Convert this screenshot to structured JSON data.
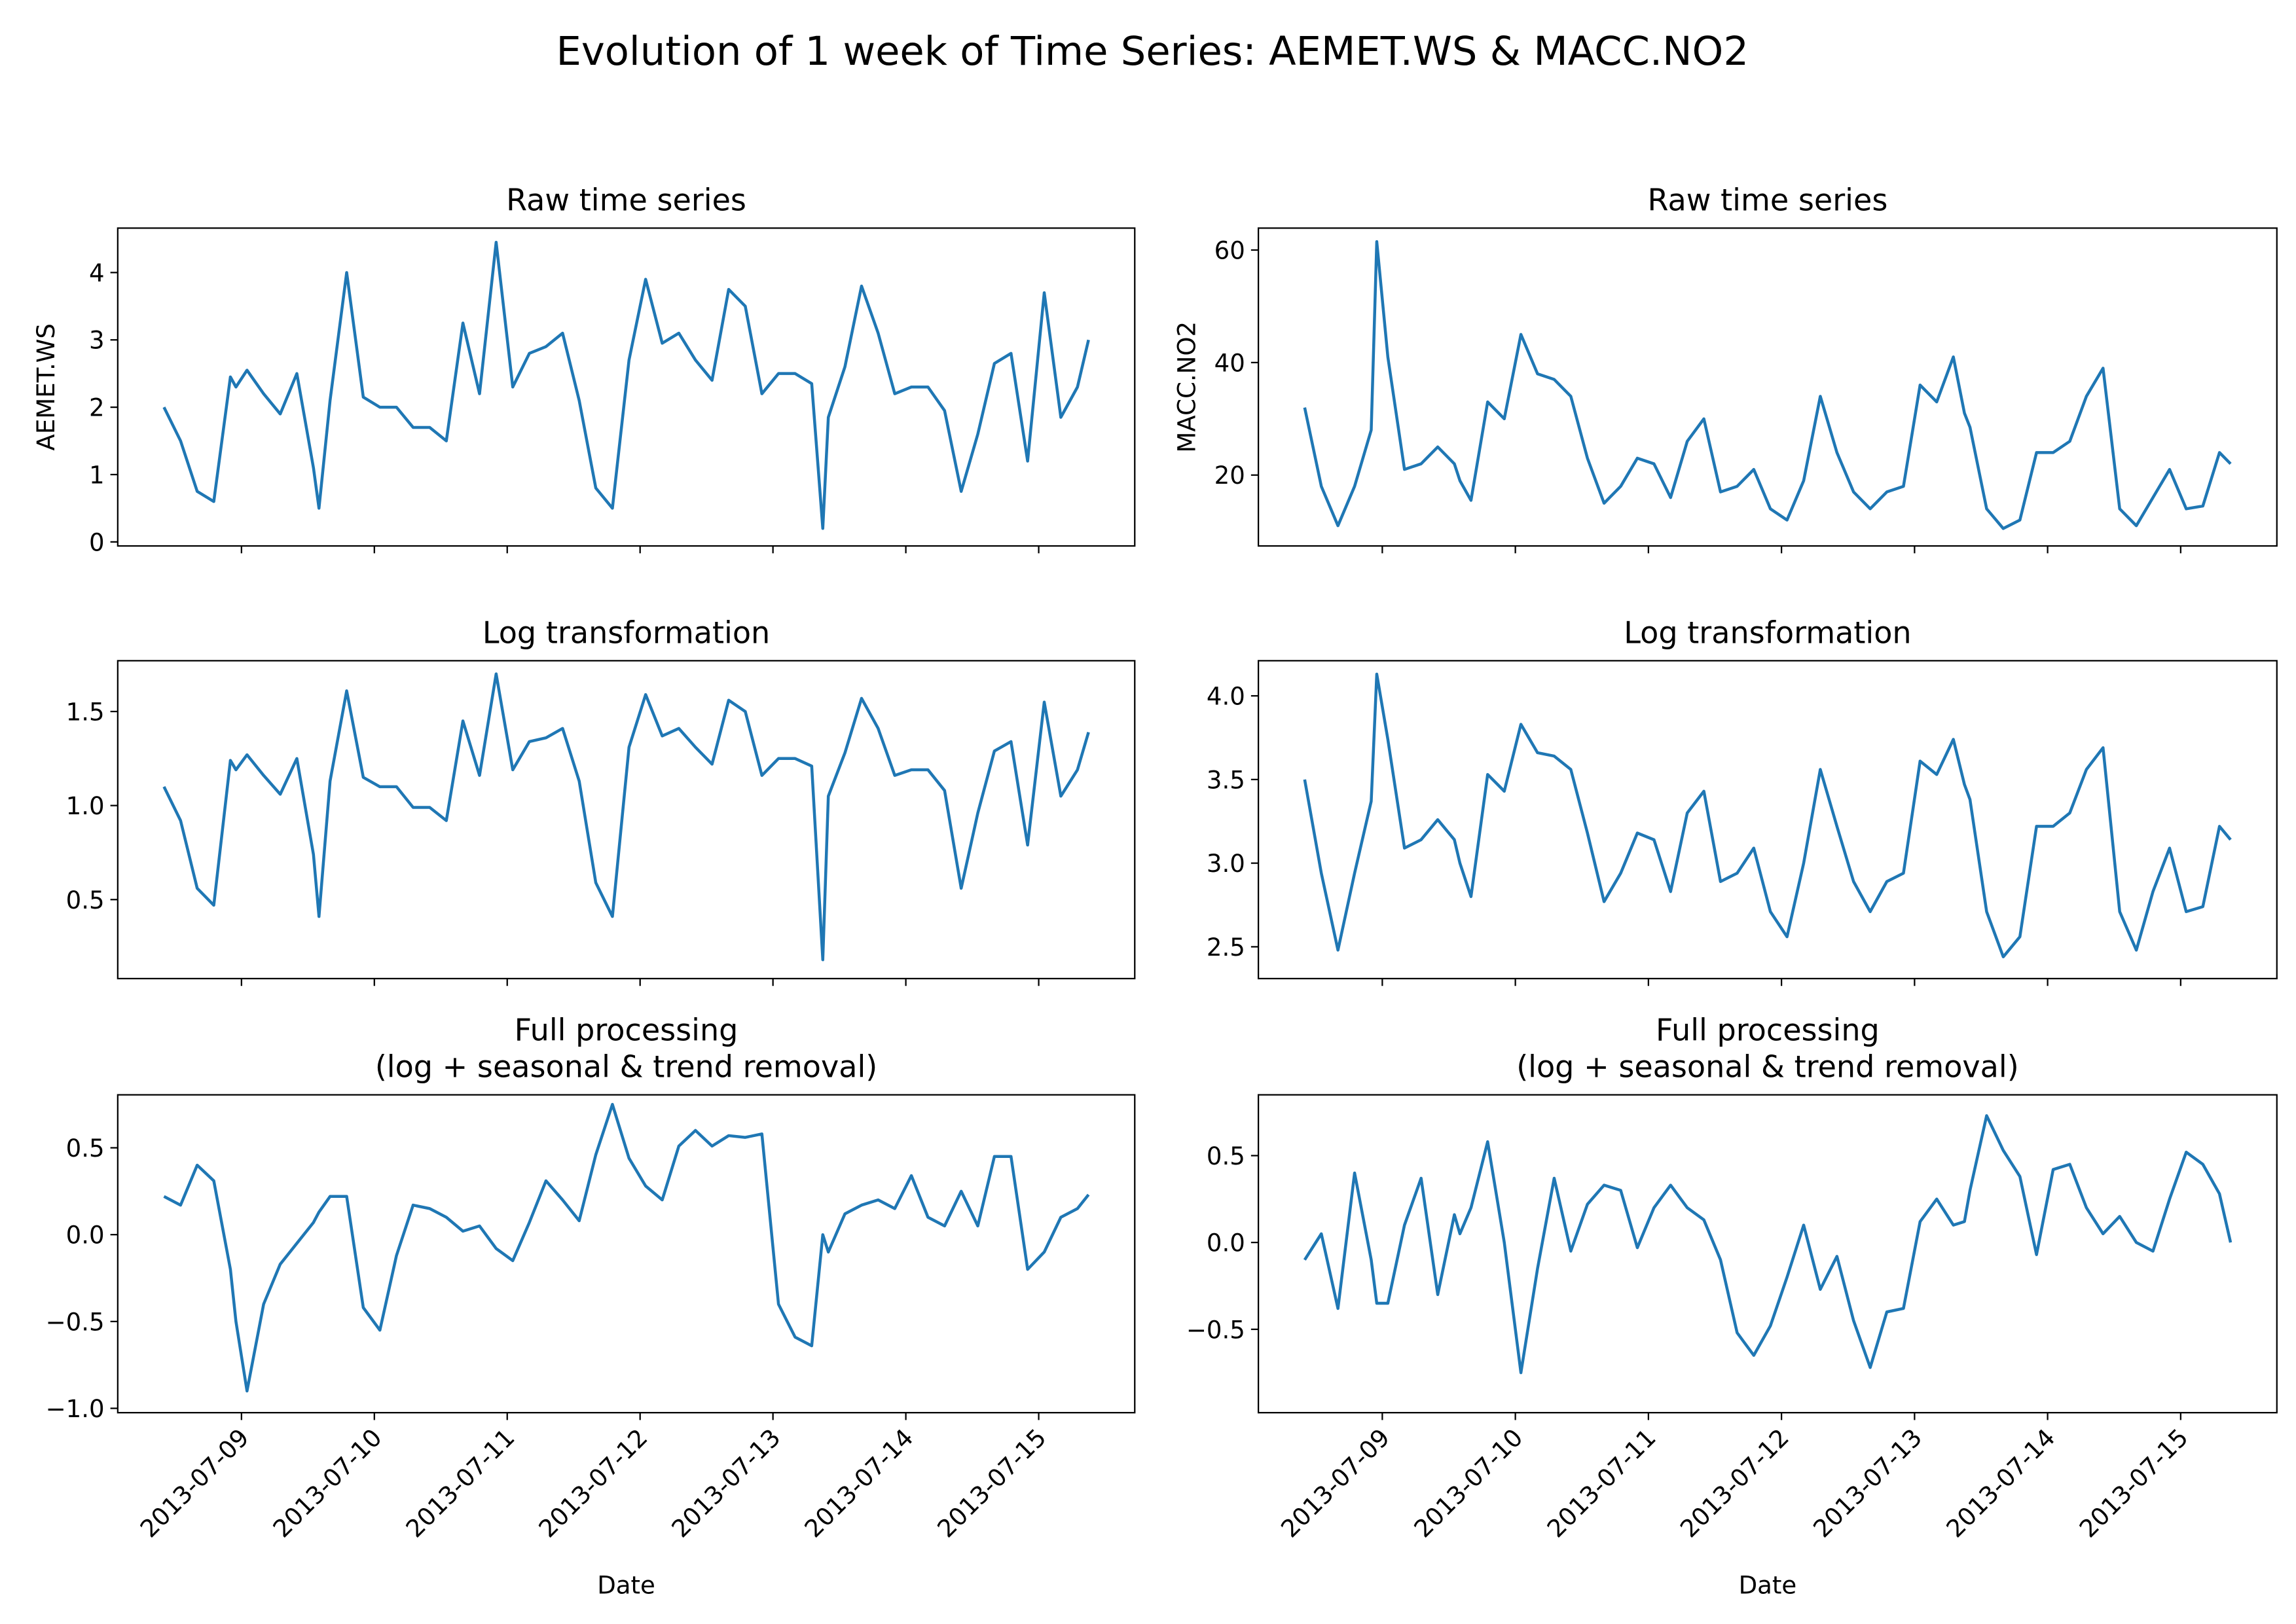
{
  "title": "Evolution of 1 week of Time Series: AEMET.WS & MACC.NO2",
  "chart_data": [
    {
      "type": "line",
      "title": "Raw time series",
      "ylabel": "AEMET.WS",
      "color": "#1f77b4",
      "show_xtick_labels": false,
      "x": [
        "2013-07-08 10:00",
        "2013-07-08 13:00",
        "2013-07-08 16:00",
        "2013-07-08 19:00",
        "2013-07-08 22:00",
        "2013-07-08 23:00",
        "2013-07-09 01:00",
        "2013-07-09 04:00",
        "2013-07-09 07:00",
        "2013-07-09 10:00",
        "2013-07-09 13:00",
        "2013-07-09 14:00",
        "2013-07-09 16:00",
        "2013-07-09 19:00",
        "2013-07-09 22:00",
        "2013-07-10 01:00",
        "2013-07-10 04:00",
        "2013-07-10 07:00",
        "2013-07-10 10:00",
        "2013-07-10 13:00",
        "2013-07-10 16:00",
        "2013-07-10 19:00",
        "2013-07-10 22:00",
        "2013-07-11 01:00",
        "2013-07-11 04:00",
        "2013-07-11 07:00",
        "2013-07-11 10:00",
        "2013-07-11 13:00",
        "2013-07-11 16:00",
        "2013-07-11 19:00",
        "2013-07-11 22:00",
        "2013-07-12 01:00",
        "2013-07-12 04:00",
        "2013-07-12 07:00",
        "2013-07-12 10:00",
        "2013-07-12 13:00",
        "2013-07-12 16:00",
        "2013-07-12 19:00",
        "2013-07-12 22:00",
        "2013-07-13 01:00",
        "2013-07-13 04:00",
        "2013-07-13 07:00",
        "2013-07-13 09:00",
        "2013-07-13 10:00",
        "2013-07-13 13:00",
        "2013-07-13 16:00",
        "2013-07-13 19:00",
        "2013-07-13 22:00",
        "2013-07-14 01:00",
        "2013-07-14 04:00",
        "2013-07-14 07:00",
        "2013-07-14 10:00",
        "2013-07-14 13:00",
        "2013-07-14 16:00",
        "2013-07-14 19:00",
        "2013-07-14 22:00",
        "2013-07-15 01:00",
        "2013-07-15 04:00",
        "2013-07-15 07:00",
        "2013-07-15 09:00"
      ],
      "values": [
        2.0,
        1.5,
        0.75,
        0.6,
        2.45,
        2.3,
        2.55,
        2.2,
        1.9,
        2.5,
        1.1,
        0.5,
        2.1,
        4.0,
        2.15,
        2.0,
        2.0,
        1.7,
        1.7,
        1.5,
        3.25,
        2.2,
        4.45,
        2.3,
        2.8,
        2.9,
        3.1,
        2.1,
        0.8,
        0.5,
        2.7,
        3.9,
        2.95,
        3.1,
        2.7,
        2.4,
        3.75,
        3.5,
        2.2,
        2.5,
        2.5,
        2.35,
        0.2,
        1.85,
        2.6,
        3.8,
        3.1,
        2.2,
        2.3,
        2.3,
        1.95,
        0.75,
        1.6,
        2.65,
        2.8,
        1.2,
        3.7,
        1.85,
        2.3,
        3.0
      ],
      "xlim": [
        "2013-07-08 01:39",
        "2013-07-15 17:21"
      ],
      "xticks": [
        "2013-07-09",
        "2013-07-10",
        "2013-07-11",
        "2013-07-12",
        "2013-07-13",
        "2013-07-14",
        "2013-07-15"
      ],
      "ylim": [
        -0.06,
        4.66
      ],
      "yticks": [
        0,
        1,
        2,
        3,
        4
      ]
    },
    {
      "type": "line",
      "title": "Raw time series",
      "ylabel": "MACC.NO2",
      "color": "#1f77b4",
      "show_xtick_labels": false,
      "x": [
        "2013-07-08 10:00",
        "2013-07-08 13:00",
        "2013-07-08 16:00",
        "2013-07-08 19:00",
        "2013-07-08 22:00",
        "2013-07-08 23:00",
        "2013-07-09 01:00",
        "2013-07-09 04:00",
        "2013-07-09 07:00",
        "2013-07-09 10:00",
        "2013-07-09 13:00",
        "2013-07-09 14:00",
        "2013-07-09 16:00",
        "2013-07-09 19:00",
        "2013-07-09 22:00",
        "2013-07-10 01:00",
        "2013-07-10 04:00",
        "2013-07-10 07:00",
        "2013-07-10 10:00",
        "2013-07-10 13:00",
        "2013-07-10 16:00",
        "2013-07-10 19:00",
        "2013-07-10 22:00",
        "2013-07-11 01:00",
        "2013-07-11 04:00",
        "2013-07-11 07:00",
        "2013-07-11 10:00",
        "2013-07-11 13:00",
        "2013-07-11 16:00",
        "2013-07-11 19:00",
        "2013-07-11 22:00",
        "2013-07-12 01:00",
        "2013-07-12 04:00",
        "2013-07-12 07:00",
        "2013-07-12 10:00",
        "2013-07-12 13:00",
        "2013-07-12 16:00",
        "2013-07-12 19:00",
        "2013-07-12 22:00",
        "2013-07-13 01:00",
        "2013-07-13 04:00",
        "2013-07-13 07:00",
        "2013-07-13 09:00",
        "2013-07-13 10:00",
        "2013-07-13 13:00",
        "2013-07-13 16:00",
        "2013-07-13 19:00",
        "2013-07-13 22:00",
        "2013-07-14 01:00",
        "2013-07-14 04:00",
        "2013-07-14 07:00",
        "2013-07-14 10:00",
        "2013-07-14 13:00",
        "2013-07-14 16:00",
        "2013-07-14 19:00",
        "2013-07-14 22:00",
        "2013-07-15 01:00",
        "2013-07-15 04:00",
        "2013-07-15 07:00",
        "2013-07-15 09:00"
      ],
      "values": [
        32,
        18,
        11,
        18,
        28,
        61.5,
        41,
        21,
        22,
        25,
        22,
        19,
        15.5,
        33,
        30,
        45,
        38,
        37,
        34,
        23,
        15,
        18,
        23,
        22,
        16,
        26,
        30,
        17,
        18,
        21,
        14,
        12,
        19,
        34,
        24,
        17,
        14,
        17,
        18,
        36,
        33,
        41,
        31,
        28.5,
        14,
        10.5,
        12,
        24,
        24,
        26,
        34,
        39,
        14,
        11,
        16,
        21,
        14,
        14.5,
        24,
        22
      ],
      "xlim": [
        "2013-07-08 01:39",
        "2013-07-15 17:21"
      ],
      "xticks": [
        "2013-07-09",
        "2013-07-10",
        "2013-07-11",
        "2013-07-12",
        "2013-07-13",
        "2013-07-14",
        "2013-07-15"
      ],
      "ylim": [
        7.4,
        63.9
      ],
      "yticks": [
        20,
        40,
        60
      ]
    },
    {
      "type": "line",
      "title": "Log transformation",
      "color": "#1f77b4",
      "show_xtick_labels": false,
      "x": [
        "2013-07-08 10:00",
        "2013-07-08 13:00",
        "2013-07-08 16:00",
        "2013-07-08 19:00",
        "2013-07-08 22:00",
        "2013-07-08 23:00",
        "2013-07-09 01:00",
        "2013-07-09 04:00",
        "2013-07-09 07:00",
        "2013-07-09 10:00",
        "2013-07-09 13:00",
        "2013-07-09 14:00",
        "2013-07-09 16:00",
        "2013-07-09 19:00",
        "2013-07-09 22:00",
        "2013-07-10 01:00",
        "2013-07-10 04:00",
        "2013-07-10 07:00",
        "2013-07-10 10:00",
        "2013-07-10 13:00",
        "2013-07-10 16:00",
        "2013-07-10 19:00",
        "2013-07-10 22:00",
        "2013-07-11 01:00",
        "2013-07-11 04:00",
        "2013-07-11 07:00",
        "2013-07-11 10:00",
        "2013-07-11 13:00",
        "2013-07-11 16:00",
        "2013-07-11 19:00",
        "2013-07-11 22:00",
        "2013-07-12 01:00",
        "2013-07-12 04:00",
        "2013-07-12 07:00",
        "2013-07-12 10:00",
        "2013-07-12 13:00",
        "2013-07-12 16:00",
        "2013-07-12 19:00",
        "2013-07-12 22:00",
        "2013-07-13 01:00",
        "2013-07-13 04:00",
        "2013-07-13 07:00",
        "2013-07-13 09:00",
        "2013-07-13 10:00",
        "2013-07-13 13:00",
        "2013-07-13 16:00",
        "2013-07-13 19:00",
        "2013-07-13 22:00",
        "2013-07-14 01:00",
        "2013-07-14 04:00",
        "2013-07-14 07:00",
        "2013-07-14 10:00",
        "2013-07-14 13:00",
        "2013-07-14 16:00",
        "2013-07-14 19:00",
        "2013-07-14 22:00",
        "2013-07-15 01:00",
        "2013-07-15 04:00",
        "2013-07-15 07:00",
        "2013-07-15 09:00"
      ],
      "values": [
        1.1,
        0.92,
        0.56,
        0.47,
        1.24,
        1.19,
        1.27,
        1.16,
        1.06,
        1.25,
        0.74,
        0.41,
        1.13,
        1.61,
        1.15,
        1.1,
        1.1,
        0.99,
        0.99,
        0.92,
        1.45,
        1.16,
        1.7,
        1.19,
        1.34,
        1.36,
        1.41,
        1.13,
        0.59,
        0.41,
        1.31,
        1.59,
        1.37,
        1.41,
        1.31,
        1.22,
        1.56,
        1.5,
        1.16,
        1.25,
        1.25,
        1.21,
        0.18,
        1.05,
        1.28,
        1.57,
        1.41,
        1.16,
        1.19,
        1.19,
        1.08,
        0.56,
        0.96,
        1.29,
        1.34,
        0.79,
        1.55,
        1.05,
        1.19,
        1.39
      ],
      "xlim": [
        "2013-07-08 01:39",
        "2013-07-15 17:21"
      ],
      "xticks": [
        "2013-07-09",
        "2013-07-10",
        "2013-07-11",
        "2013-07-12",
        "2013-07-13",
        "2013-07-14",
        "2013-07-15"
      ],
      "ylim": [
        0.08,
        1.77
      ],
      "yticks": [
        0.5,
        {
          "value": 1,
          "label": "1.0"
        },
        1.5
      ]
    },
    {
      "type": "line",
      "title": "Log transformation",
      "color": "#1f77b4",
      "show_xtick_labels": false,
      "x": [
        "2013-07-08 10:00",
        "2013-07-08 13:00",
        "2013-07-08 16:00",
        "2013-07-08 19:00",
        "2013-07-08 22:00",
        "2013-07-08 23:00",
        "2013-07-09 01:00",
        "2013-07-09 04:00",
        "2013-07-09 07:00",
        "2013-07-09 10:00",
        "2013-07-09 13:00",
        "2013-07-09 14:00",
        "2013-07-09 16:00",
        "2013-07-09 19:00",
        "2013-07-09 22:00",
        "2013-07-10 01:00",
        "2013-07-10 04:00",
        "2013-07-10 07:00",
        "2013-07-10 10:00",
        "2013-07-10 13:00",
        "2013-07-10 16:00",
        "2013-07-10 19:00",
        "2013-07-10 22:00",
        "2013-07-11 01:00",
        "2013-07-11 04:00",
        "2013-07-11 07:00",
        "2013-07-11 10:00",
        "2013-07-11 13:00",
        "2013-07-11 16:00",
        "2013-07-11 19:00",
        "2013-07-11 22:00",
        "2013-07-12 01:00",
        "2013-07-12 04:00",
        "2013-07-12 07:00",
        "2013-07-12 10:00",
        "2013-07-12 13:00",
        "2013-07-12 16:00",
        "2013-07-12 19:00",
        "2013-07-12 22:00",
        "2013-07-13 01:00",
        "2013-07-13 04:00",
        "2013-07-13 07:00",
        "2013-07-13 09:00",
        "2013-07-13 10:00",
        "2013-07-13 13:00",
        "2013-07-13 16:00",
        "2013-07-13 19:00",
        "2013-07-13 22:00",
        "2013-07-14 01:00",
        "2013-07-14 04:00",
        "2013-07-14 07:00",
        "2013-07-14 10:00",
        "2013-07-14 13:00",
        "2013-07-14 16:00",
        "2013-07-14 19:00",
        "2013-07-14 22:00",
        "2013-07-15 01:00",
        "2013-07-15 04:00",
        "2013-07-15 07:00",
        "2013-07-15 09:00"
      ],
      "values": [
        3.5,
        2.94,
        2.48,
        2.94,
        3.37,
        4.13,
        3.74,
        3.09,
        3.14,
        3.26,
        3.14,
        3.0,
        2.8,
        3.53,
        3.43,
        3.83,
        3.66,
        3.64,
        3.56,
        3.18,
        2.77,
        2.94,
        3.18,
        3.14,
        2.83,
        3.3,
        3.43,
        2.89,
        2.94,
        3.09,
        2.71,
        2.56,
        3.0,
        3.56,
        3.22,
        2.89,
        2.71,
        2.89,
        2.94,
        3.61,
        3.53,
        3.74,
        3.47,
        3.38,
        2.71,
        2.44,
        2.56,
        3.22,
        3.22,
        3.3,
        3.56,
        3.69,
        2.71,
        2.48,
        2.83,
        3.09,
        2.71,
        2.74,
        3.22,
        3.14
      ],
      "xlim": [
        "2013-07-08 01:39",
        "2013-07-15 17:21"
      ],
      "xticks": [
        "2013-07-09",
        "2013-07-10",
        "2013-07-11",
        "2013-07-12",
        "2013-07-13",
        "2013-07-14",
        "2013-07-15"
      ],
      "ylim": [
        2.31,
        4.21
      ],
      "yticks": [
        2.5,
        {
          "value": 3,
          "label": "3.0"
        },
        3.5,
        {
          "value": 4,
          "label": "4.0"
        }
      ]
    },
    {
      "type": "line",
      "title": [
        "Full processing",
        "(log + seasonal & trend removal)"
      ],
      "xlabel": "Date",
      "color": "#1f77b4",
      "show_xtick_labels": true,
      "x": [
        "2013-07-08 10:00",
        "2013-07-08 13:00",
        "2013-07-08 16:00",
        "2013-07-08 19:00",
        "2013-07-08 22:00",
        "2013-07-08 23:00",
        "2013-07-09 01:00",
        "2013-07-09 04:00",
        "2013-07-09 07:00",
        "2013-07-09 10:00",
        "2013-07-09 13:00",
        "2013-07-09 14:00",
        "2013-07-09 16:00",
        "2013-07-09 19:00",
        "2013-07-09 22:00",
        "2013-07-10 01:00",
        "2013-07-10 04:00",
        "2013-07-10 07:00",
        "2013-07-10 10:00",
        "2013-07-10 13:00",
        "2013-07-10 16:00",
        "2013-07-10 19:00",
        "2013-07-10 22:00",
        "2013-07-11 01:00",
        "2013-07-11 04:00",
        "2013-07-11 07:00",
        "2013-07-11 10:00",
        "2013-07-11 13:00",
        "2013-07-11 16:00",
        "2013-07-11 19:00",
        "2013-07-11 22:00",
        "2013-07-12 01:00",
        "2013-07-12 04:00",
        "2013-07-12 07:00",
        "2013-07-12 10:00",
        "2013-07-12 13:00",
        "2013-07-12 16:00",
        "2013-07-12 19:00",
        "2013-07-12 22:00",
        "2013-07-13 01:00",
        "2013-07-13 04:00",
        "2013-07-13 07:00",
        "2013-07-13 09:00",
        "2013-07-13 10:00",
        "2013-07-13 13:00",
        "2013-07-13 16:00",
        "2013-07-13 19:00",
        "2013-07-13 22:00",
        "2013-07-14 01:00",
        "2013-07-14 04:00",
        "2013-07-14 07:00",
        "2013-07-14 10:00",
        "2013-07-14 13:00",
        "2013-07-14 16:00",
        "2013-07-14 19:00",
        "2013-07-14 22:00",
        "2013-07-15 01:00",
        "2013-07-15 04:00",
        "2013-07-15 07:00",
        "2013-07-15 09:00"
      ],
      "values": [
        0.22,
        0.17,
        0.4,
        0.31,
        -0.2,
        -0.5,
        -0.9,
        -0.4,
        -0.17,
        -0.05,
        0.07,
        0.13,
        0.22,
        0.22,
        -0.42,
        -0.55,
        -0.12,
        0.17,
        0.15,
        0.1,
        0.02,
        0.05,
        -0.08,
        -0.15,
        0.07,
        0.31,
        0.2,
        0.08,
        0.46,
        0.75,
        0.44,
        0.28,
        0.2,
        0.51,
        0.6,
        0.51,
        0.57,
        0.56,
        0.58,
        -0.4,
        -0.59,
        -0.64,
        0.0,
        -0.1,
        0.12,
        0.17,
        0.2,
        0.15,
        0.34,
        0.1,
        0.05,
        0.25,
        0.05,
        0.45,
        0.45,
        -0.2,
        -0.1,
        0.1,
        0.15,
        0.23
      ],
      "xlim": [
        "2013-07-08 01:39",
        "2013-07-15 17:21"
      ],
      "xticks": [
        "2013-07-09",
        "2013-07-10",
        "2013-07-11",
        "2013-07-12",
        "2013-07-13",
        "2013-07-14",
        "2013-07-15"
      ],
      "ylim": [
        -1.025,
        0.805
      ],
      "yticks": [
        {
          "value": -1,
          "label": "−1.0"
        },
        {
          "value": -0.5,
          "label": "−0.5"
        },
        {
          "value": 0,
          "label": "0.0"
        },
        0.5
      ]
    },
    {
      "type": "line",
      "title": [
        "Full processing",
        "(log + seasonal & trend removal)"
      ],
      "xlabel": "Date",
      "color": "#1f77b4",
      "show_xtick_labels": true,
      "x": [
        "2013-07-08 10:00",
        "2013-07-08 13:00",
        "2013-07-08 16:00",
        "2013-07-08 19:00",
        "2013-07-08 22:00",
        "2013-07-08 23:00",
        "2013-07-09 01:00",
        "2013-07-09 04:00",
        "2013-07-09 07:00",
        "2013-07-09 10:00",
        "2013-07-09 13:00",
        "2013-07-09 14:00",
        "2013-07-09 16:00",
        "2013-07-09 19:00",
        "2013-07-09 22:00",
        "2013-07-10 01:00",
        "2013-07-10 04:00",
        "2013-07-10 07:00",
        "2013-07-10 10:00",
        "2013-07-10 13:00",
        "2013-07-10 16:00",
        "2013-07-10 19:00",
        "2013-07-10 22:00",
        "2013-07-11 01:00",
        "2013-07-11 04:00",
        "2013-07-11 07:00",
        "2013-07-11 10:00",
        "2013-07-11 13:00",
        "2013-07-11 16:00",
        "2013-07-11 19:00",
        "2013-07-11 22:00",
        "2013-07-12 01:00",
        "2013-07-12 04:00",
        "2013-07-12 07:00",
        "2013-07-12 10:00",
        "2013-07-12 13:00",
        "2013-07-12 16:00",
        "2013-07-12 19:00",
        "2013-07-12 22:00",
        "2013-07-13 01:00",
        "2013-07-13 04:00",
        "2013-07-13 07:00",
        "2013-07-13 09:00",
        "2013-07-13 10:00",
        "2013-07-13 13:00",
        "2013-07-13 16:00",
        "2013-07-13 19:00",
        "2013-07-13 22:00",
        "2013-07-14 01:00",
        "2013-07-14 04:00",
        "2013-07-14 07:00",
        "2013-07-14 10:00",
        "2013-07-14 13:00",
        "2013-07-14 16:00",
        "2013-07-14 19:00",
        "2013-07-14 22:00",
        "2013-07-15 01:00",
        "2013-07-15 04:00",
        "2013-07-15 07:00",
        "2013-07-15 09:00"
      ],
      "values": [
        -0.1,
        0.05,
        -0.38,
        0.4,
        -0.1,
        -0.35,
        -0.35,
        0.1,
        0.37,
        -0.3,
        0.16,
        0.05,
        0.2,
        0.58,
        0.0,
        -0.75,
        -0.15,
        0.37,
        -0.05,
        0.22,
        0.33,
        0.3,
        -0.03,
        0.2,
        0.33,
        0.2,
        0.13,
        -0.1,
        -0.52,
        -0.65,
        -0.48,
        -0.2,
        0.1,
        -0.27,
        -0.08,
        -0.45,
        -0.72,
        -0.4,
        -0.38,
        0.12,
        0.25,
        0.1,
        0.12,
        0.3,
        0.73,
        0.53,
        0.38,
        -0.07,
        0.42,
        0.45,
        0.2,
        0.05,
        0.15,
        0.0,
        -0.05,
        0.25,
        0.52,
        0.45,
        0.28,
        0.0
      ],
      "xlim": [
        "2013-07-08 01:39",
        "2013-07-15 17:21"
      ],
      "xticks": [
        "2013-07-09",
        "2013-07-10",
        "2013-07-11",
        "2013-07-12",
        "2013-07-13",
        "2013-07-14",
        "2013-07-15"
      ],
      "ylim": [
        -0.98,
        0.85
      ],
      "yticks": [
        {
          "value": -0.5,
          "label": "−0.5"
        },
        {
          "value": 0,
          "label": "0.0"
        },
        0.5
      ]
    }
  ]
}
